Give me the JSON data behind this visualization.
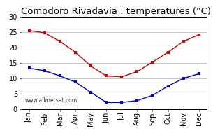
{
  "title": "Comodoro Rivadavia : temperatures (°C)",
  "months": [
    "Jan",
    "Feb",
    "Mar",
    "Apr",
    "May",
    "Jun",
    "Jul",
    "Aug",
    "Sep",
    "Oct",
    "Nov",
    "Dec"
  ],
  "high_temps": [
    25.5,
    24.8,
    22.0,
    18.5,
    14.0,
    10.8,
    10.5,
    12.2,
    15.3,
    18.5,
    22.0,
    24.2
  ],
  "low_temps": [
    13.3,
    12.5,
    10.8,
    8.8,
    5.5,
    2.2,
    2.2,
    2.8,
    4.5,
    7.5,
    10.0,
    11.5
  ],
  "high_color": "#cc0000",
  "low_color": "#0000cc",
  "bg_color": "#ffffff",
  "grid_color": "#bbbbbb",
  "ylim": [
    0,
    30
  ],
  "yticks": [
    0,
    5,
    10,
    15,
    20,
    25,
    30
  ],
  "watermark": "www.allmetsat.com",
  "title_fontsize": 9.5,
  "label_fontsize": 7,
  "tick_fontsize": 7,
  "marker": "s",
  "markersize": 3.5
}
